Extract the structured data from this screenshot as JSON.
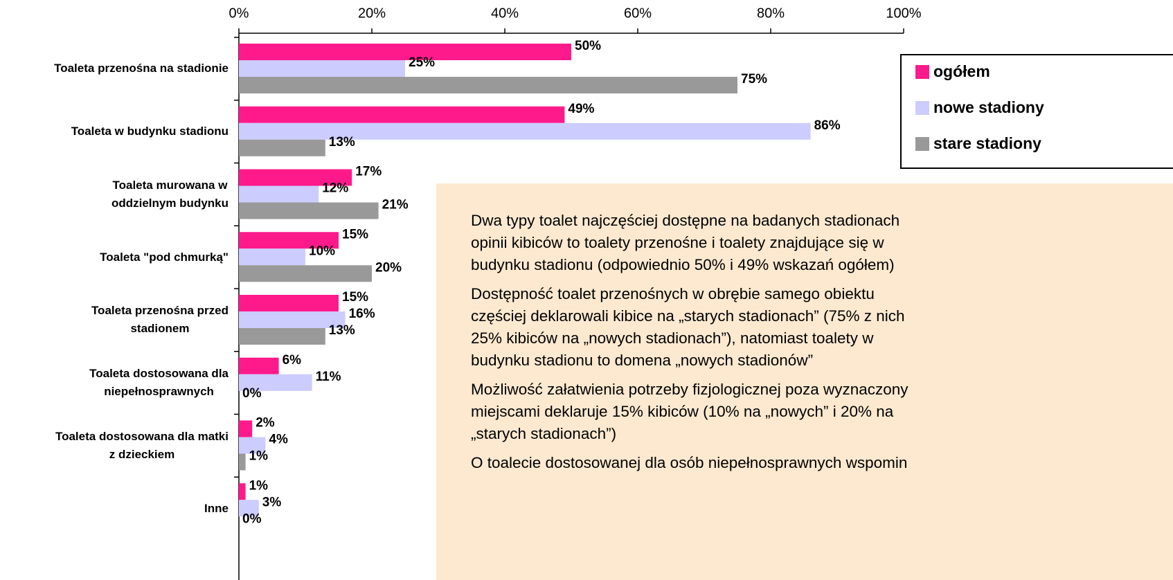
{
  "chart_data": {
    "type": "bar",
    "orientation": "horizontal",
    "categories": [
      "Toaleta przenośna na stadionie",
      "Toaleta w budynku stadionu",
      "Toaleta murowana w\noddzielnym budynku",
      "Toaleta \"pod chmurką\"",
      "Toaleta przenośna przed\nstadionem",
      "Toaleta dostosowana dla\nniepełnosprawnych",
      "Toaleta dostosowana dla matki\nz dzieckiem",
      "Inne"
    ],
    "series": [
      {
        "name": "ogółem",
        "color": "#ff1a8c",
        "values": [
          50,
          49,
          17,
          15,
          15,
          6,
          2,
          1
        ],
        "value_labels": [
          "50%",
          "49%",
          "17%",
          "15%",
          "15%",
          "6%",
          "2%",
          "1%"
        ]
      },
      {
        "name": "nowe stadiony",
        "color": "#ccccff",
        "values": [
          25,
          86,
          12,
          10,
          16,
          11,
          4,
          3
        ],
        "value_labels": [
          "25%",
          "86%",
          "12%",
          "10%",
          "16%",
          "11%",
          "4%",
          "3%"
        ]
      },
      {
        "name": "stare stadiony",
        "color": "#999999",
        "values": [
          75,
          13,
          21,
          20,
          13,
          0,
          1,
          0
        ],
        "value_labels": [
          "75%",
          "13%",
          "21%",
          "20%",
          "13%",
          "0%",
          "1%",
          "0%"
        ]
      }
    ],
    "xlim": [
      0,
      100
    ],
    "xticks": [
      {
        "value": 0,
        "label": "0%"
      },
      {
        "value": 20,
        "label": "20%"
      },
      {
        "value": 40,
        "label": "40%"
      },
      {
        "value": 60,
        "label": "60%"
      },
      {
        "value": 80,
        "label": "80%"
      },
      {
        "value": 100,
        "label": "100%"
      }
    ],
    "grid": false,
    "legend": "upper right",
    "annotation": [
      "Dwa typy toalet najczęściej dostępne na badanych stadionach\nopinii kibiców to toalety przenośne i toalety znajdujące się w\nbudynku stadionu (odpowiednio 50% i 49% wskazań ogółem)",
      "Dostępność toalet przenośnych w obrębie samego obiektu\nczęściej deklarowali kibice na „starych stadionach” (75% z nich\n25% kibiców na „nowych stadionach”), natomiast toalety w\nbudynku stadionu to domena „nowych stadionów”",
      "Możliwość załatwienia potrzeby fizjologicznej poza wyznaczony\nmiejscami deklaruje 15% kibiców (10% na „nowych” i 20% na\n„starych stadionach”)",
      "O toalecie dostosowanej dla osób niepełnosprawnych wspomin"
    ]
  }
}
